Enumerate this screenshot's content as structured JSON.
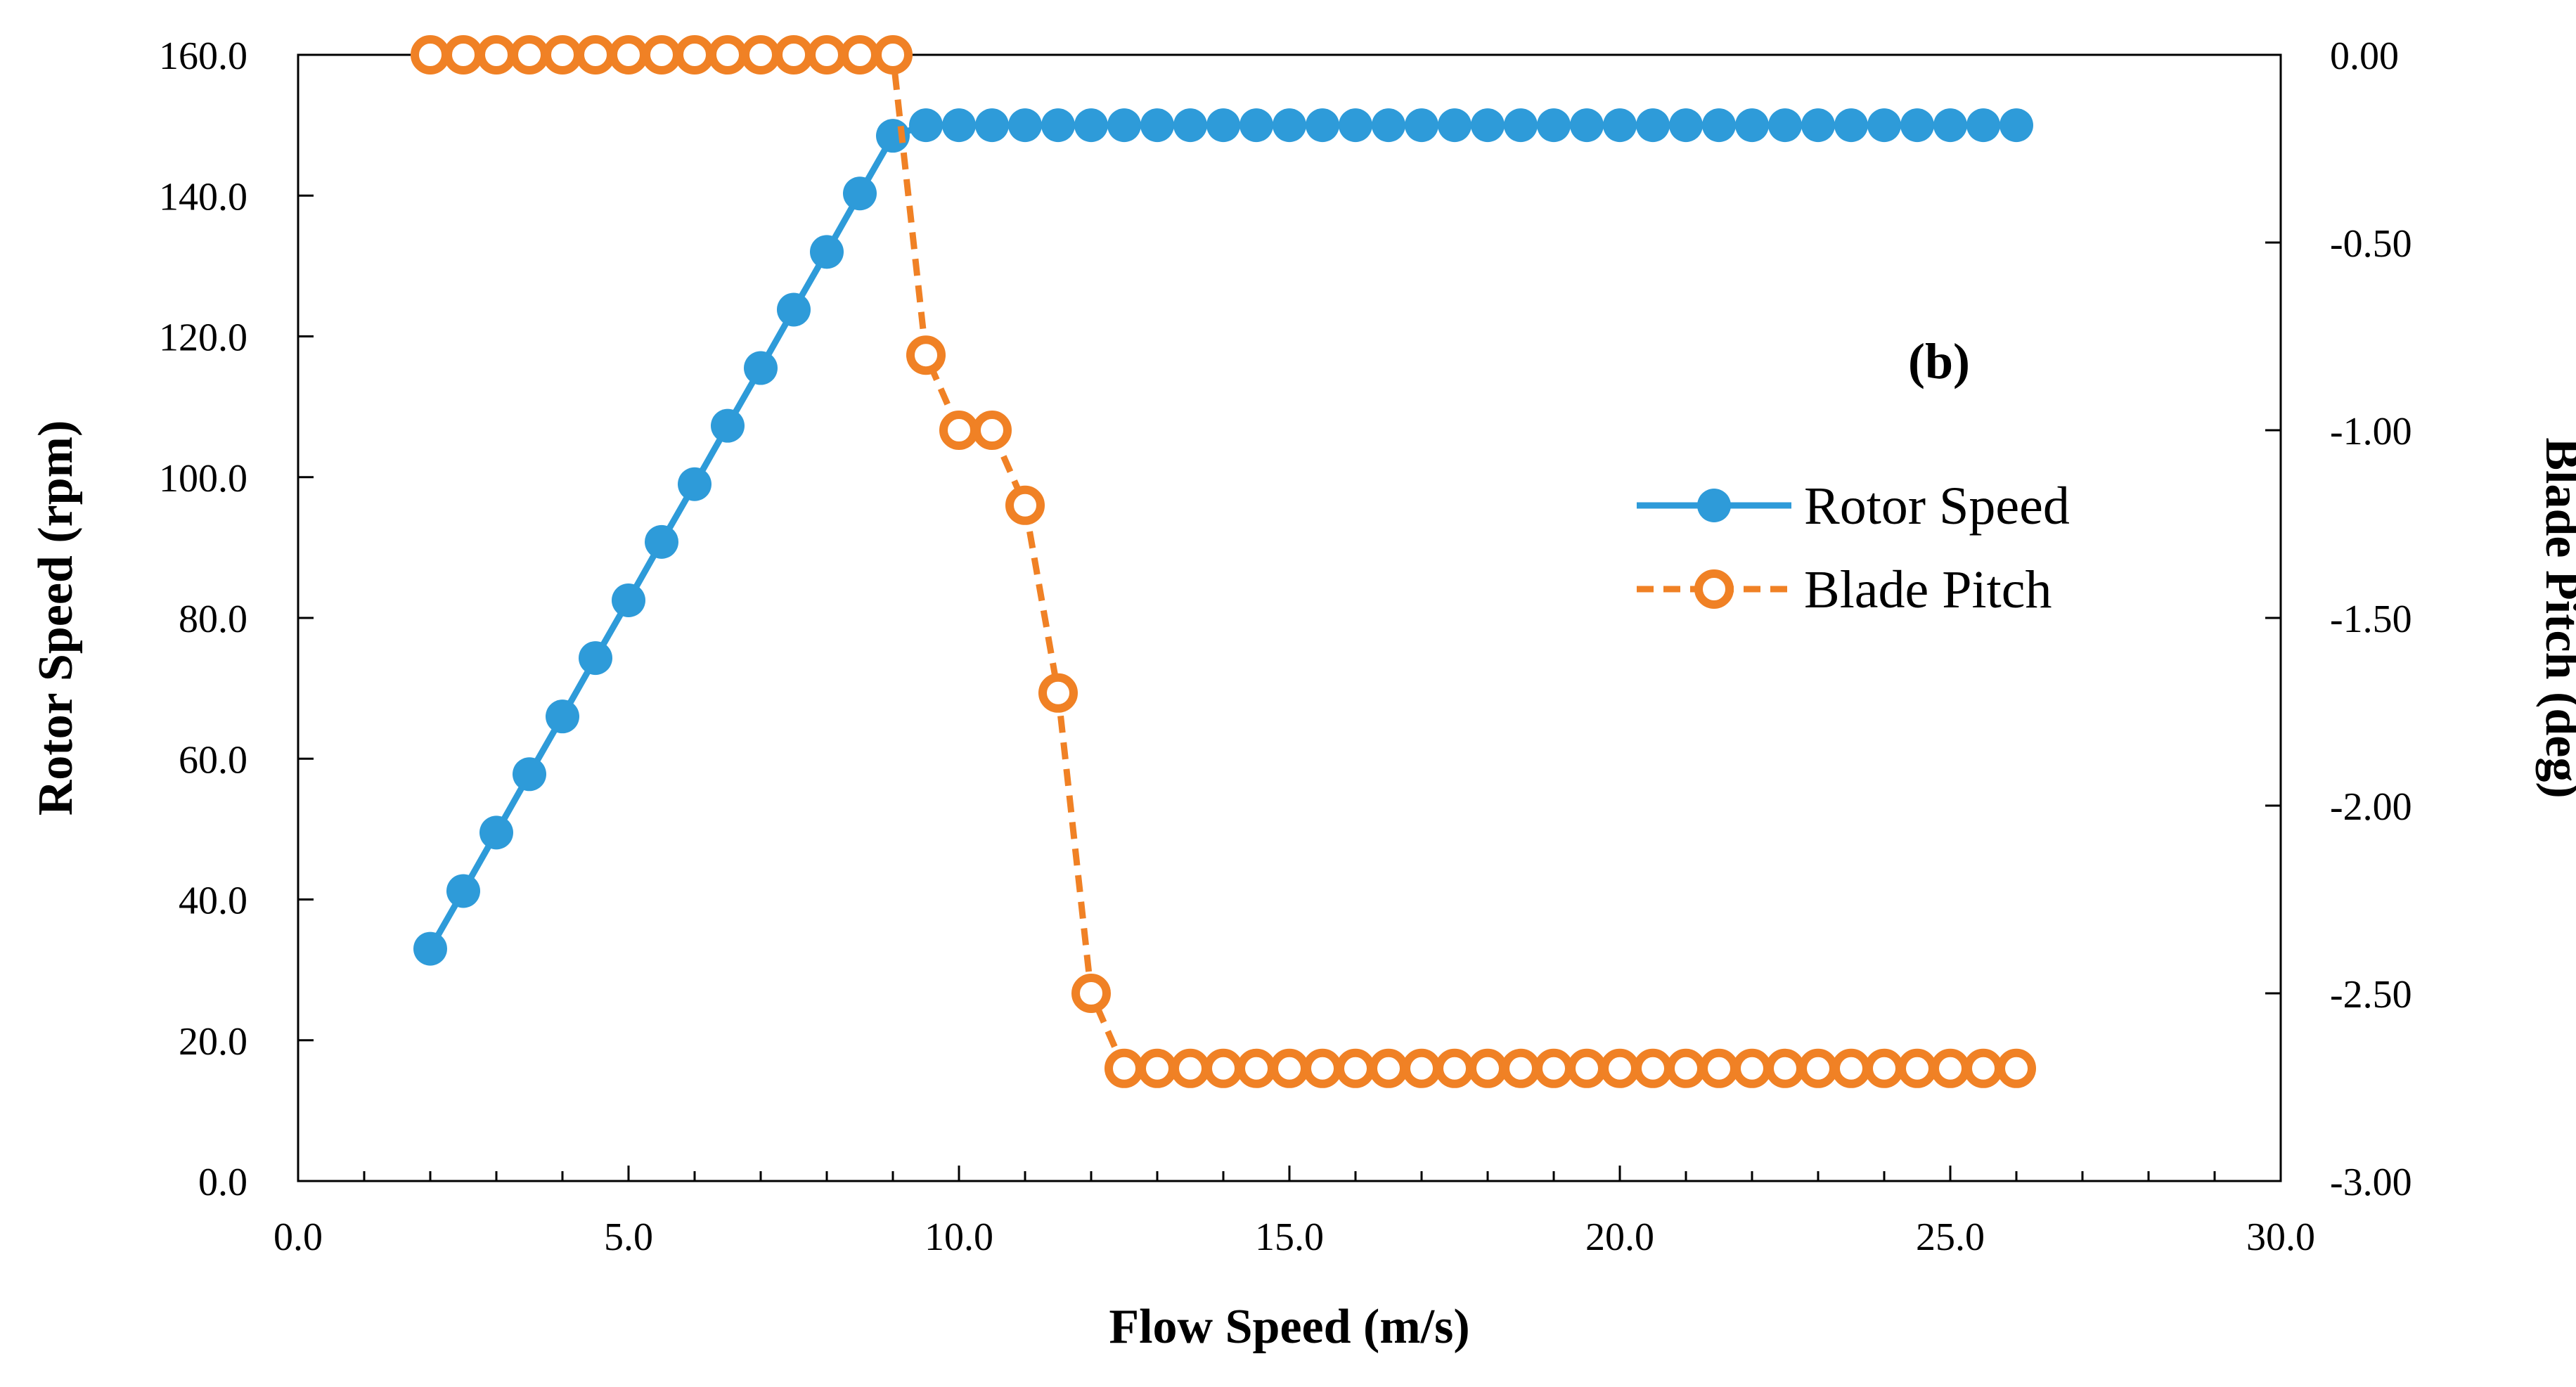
{
  "chart_data": {
    "type": "line",
    "title": "",
    "annotation": "(b)",
    "xlabel": "Flow Speed (m/s)",
    "ylabel": "Rotor Speed (rpm)",
    "y2label": "Blade Pitch (deg)",
    "xlim": [
      0,
      30
    ],
    "ylim": [
      0,
      160
    ],
    "y2lim": [
      -3,
      0
    ],
    "x_ticks": [
      "0.0",
      "5.0",
      "10.0",
      "15.0",
      "20.0",
      "25.0",
      "30.0"
    ],
    "y_ticks": [
      "0.0",
      "20.0",
      "40.0",
      "60.0",
      "80.0",
      "100.0",
      "120.0",
      "140.0",
      "160.0"
    ],
    "y2_ticks": [
      "-3.00",
      "-2.50",
      "-2.00",
      "-1.50",
      "-1.00",
      "-0.50",
      "0.00"
    ],
    "grid": false,
    "legend_position": "right",
    "x": [
      2.0,
      2.5,
      3.0,
      3.5,
      4.0,
      4.5,
      5.0,
      5.5,
      6.0,
      6.5,
      7.0,
      7.5,
      8.0,
      8.5,
      9.0,
      9.5,
      10.0,
      10.5,
      11.0,
      11.5,
      12.0,
      12.5,
      13.0,
      13.5,
      14.0,
      14.5,
      15.0,
      15.5,
      16.0,
      16.5,
      17.0,
      17.5,
      18.0,
      18.5,
      19.0,
      19.5,
      20.0,
      20.5,
      21.0,
      21.5,
      22.0,
      22.5,
      23.0,
      23.5,
      24.0,
      24.5,
      25.0,
      25.5,
      26.0
    ],
    "series": [
      {
        "name": "Rotor Speed",
        "axis": "left",
        "color": "#2E9BD9",
        "marker": "filled-circle",
        "line": "solid",
        "values": [
          33.0,
          41.2,
          49.5,
          57.8,
          66.0,
          74.3,
          82.5,
          90.8,
          99.0,
          107.3,
          115.5,
          123.8,
          132.0,
          140.3,
          148.5,
          150.0,
          150.0,
          150.0,
          150.0,
          150.0,
          150.0,
          150.0,
          150.0,
          150.0,
          150.0,
          150.0,
          150.0,
          150.0,
          150.0,
          150.0,
          150.0,
          150.0,
          150.0,
          150.0,
          150.0,
          150.0,
          150.0,
          150.0,
          150.0,
          150.0,
          150.0,
          150.0,
          150.0,
          150.0,
          150.0,
          150.0,
          150.0,
          150.0,
          150.0
        ]
      },
      {
        "name": "Blade Pitch",
        "axis": "right",
        "color": "#F08125",
        "marker": "open-circle",
        "line": "dashed",
        "values": [
          0.0,
          0.0,
          0.0,
          0.0,
          0.0,
          0.0,
          0.0,
          0.0,
          0.0,
          0.0,
          0.0,
          0.0,
          0.0,
          0.0,
          0.0,
          -0.8,
          -1.0,
          -1.0,
          -1.2,
          -1.7,
          -2.5,
          -2.7,
          -2.7,
          -2.7,
          -2.7,
          -2.7,
          -2.7,
          -2.7,
          -2.7,
          -2.7,
          -2.7,
          -2.7,
          -2.7,
          -2.7,
          -2.7,
          -2.7,
          -2.7,
          -2.7,
          -2.7,
          -2.7,
          -2.7,
          -2.7,
          -2.7,
          -2.7,
          -2.7,
          -2.7,
          -2.7,
          -2.7,
          -2.7
        ]
      }
    ]
  }
}
